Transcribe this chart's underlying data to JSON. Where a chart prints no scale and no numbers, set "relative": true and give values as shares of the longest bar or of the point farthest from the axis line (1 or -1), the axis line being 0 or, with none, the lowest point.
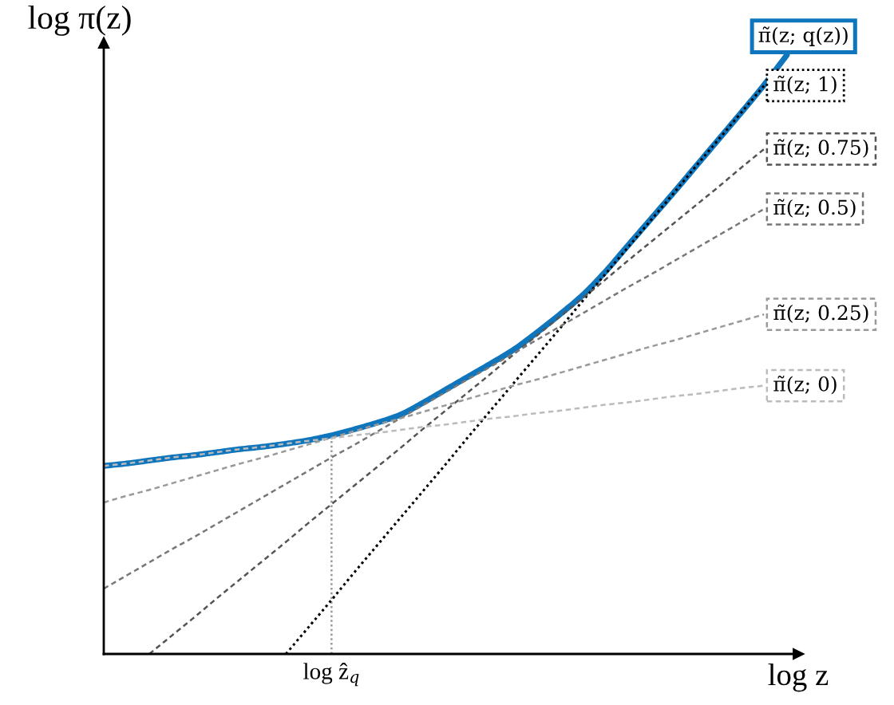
{
  "chart_data": {
    "type": "line",
    "relative": true,
    "xlabel": "log z",
    "ylabel": "log π(z)",
    "categories": [
      null,
      null,
      null,
      null,
      null,
      null,
      null,
      null,
      null,
      null,
      null,
      null,
      null,
      null,
      null,
      null,
      null,
      null,
      null,
      null,
      null,
      null,
      null,
      null,
      null,
      null,
      null,
      null,
      null,
      null,
      null
    ],
    "series": [
      {
        "name": "π̃(z; q(z))",
        "color": "#0f75bc",
        "line_style": "solid",
        "values": [
          0.314,
          0.318,
          0.323,
          0.328,
          0.332,
          0.337,
          0.342,
          0.346,
          0.351,
          0.357,
          0.365,
          0.375,
          0.386,
          0.399,
          0.419,
          0.441,
          0.463,
          0.485,
          0.508,
          0.536,
          0.566,
          0.598,
          0.637,
          0.681,
          0.725,
          0.769,
          0.814,
          0.859,
          0.904,
          0.95,
          1.0
        ]
      },
      {
        "name": "π̃(z; 1)",
        "color": "#000000",
        "line_style": "dotted",
        "values": [
          null,
          null,
          null,
          null,
          null,
          null,
          null,
          null,
          0,
          0.045,
          0.09,
          0.136,
          0.181,
          0.226,
          0.271,
          0.316,
          0.362,
          0.407,
          0.452,
          0.497,
          0.542,
          0.588,
          0.633,
          0.678,
          0.723,
          0.768,
          0.814,
          0.859,
          0.904,
          0.949,
          null
        ]
      },
      {
        "name": "π̃(z; 0.75)",
        "color": "#555555",
        "line_style": "dashed",
        "values": [
          null,
          null,
          0,
          0.031,
          0.062,
          0.094,
          0.125,
          0.156,
          0.187,
          0.219,
          0.25,
          0.281,
          0.312,
          0.343,
          0.375,
          0.406,
          0.437,
          0.468,
          0.5,
          0.531,
          0.562,
          0.593,
          0.624,
          0.656,
          0.687,
          0.718,
          0.749,
          0.78,
          0.812,
          0.843,
          null
        ]
      },
      {
        "name": "π̃(z; 0.5)",
        "color": "#777777",
        "line_style": "dashed",
        "values": [
          0.109,
          0.131,
          0.153,
          0.175,
          0.196,
          0.218,
          0.24,
          0.262,
          0.284,
          0.306,
          0.328,
          0.349,
          0.371,
          0.393,
          0.415,
          0.437,
          0.459,
          0.48,
          0.502,
          0.524,
          0.546,
          0.568,
          0.59,
          0.612,
          0.633,
          0.655,
          0.677,
          0.699,
          0.721,
          0.743,
          null
        ]
      },
      {
        "name": "π̃(z; 0.25)",
        "color": "#999999",
        "line_style": "dashed",
        "values": [
          0.253,
          0.264,
          0.274,
          0.285,
          0.296,
          0.307,
          0.318,
          0.328,
          0.339,
          0.35,
          0.361,
          0.372,
          0.383,
          0.393,
          0.404,
          0.415,
          0.426,
          0.437,
          0.448,
          0.458,
          0.469,
          0.48,
          0.491,
          0.502,
          0.513,
          0.523,
          0.534,
          0.545,
          0.556,
          0.567,
          null
        ]
      },
      {
        "name": "π̃(z; 0)",
        "color": "#bbbbbb",
        "line_style": "dashed",
        "values": [
          0.314,
          0.318,
          0.323,
          0.328,
          0.332,
          0.337,
          0.342,
          0.346,
          0.351,
          0.356,
          0.36,
          0.365,
          0.369,
          0.374,
          0.379,
          0.383,
          0.388,
          0.393,
          0.397,
          0.402,
          0.406,
          0.411,
          0.416,
          0.42,
          0.425,
          0.43,
          0.434,
          0.439,
          0.444,
          0.448,
          null
        ]
      }
    ],
    "annotations": [
      "log ẑ$_{q}$"
    ]
  }
}
